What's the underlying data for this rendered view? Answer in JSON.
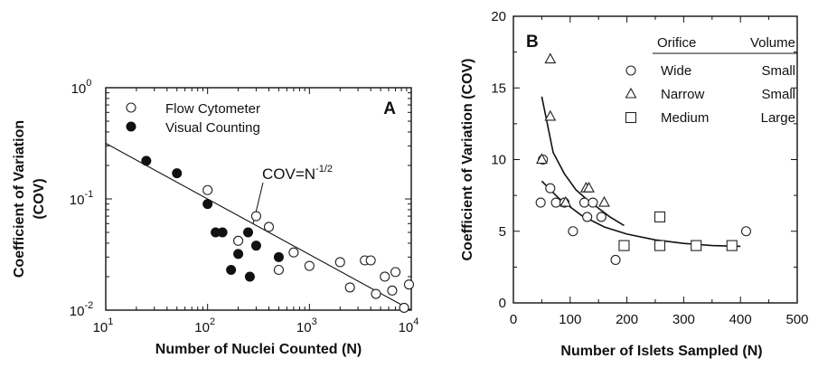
{
  "chart_data": [
    {
      "panel": "A",
      "type": "scatter",
      "xlabel": "Number of Nuclei Counted (N)",
      "ylabel_line1": "Coefficient of Variation",
      "ylabel_line2": "(COV)",
      "x_scale": "log",
      "y_scale": "log",
      "xlim": [
        10,
        10000
      ],
      "ylim": [
        0.01,
        1
      ],
      "x_ticks": [
        {
          "base": "10",
          "exp": "1"
        },
        {
          "base": "10",
          "exp": "2"
        },
        {
          "base": "10",
          "exp": "3"
        },
        {
          "base": "10",
          "exp": "4"
        }
      ],
      "y_ticks": [
        {
          "base": "10",
          "exp": "-2"
        },
        {
          "base": "10",
          "exp": "-1"
        },
        {
          "base": "10",
          "exp": "0"
        }
      ],
      "legend": [
        "Flow Cytometer",
        "Visual Counting"
      ],
      "annotation": {
        "base": "COV=N",
        "exp": "-1/2"
      },
      "line": {
        "label": "COV=N^-1/2",
        "x": [
          10,
          10000
        ],
        "y": [
          0.316,
          0.01
        ]
      },
      "series": [
        {
          "name": "Flow Cytometer",
          "marker": "open-circle",
          "points": [
            [
              100,
              0.12
            ],
            [
              200,
              0.042
            ],
            [
              300,
              0.07
            ],
            [
              400,
              0.056
            ],
            [
              500,
              0.023
            ],
            [
              700,
              0.033
            ],
            [
              1000,
              0.025
            ],
            [
              2000,
              0.027
            ],
            [
              2500,
              0.016
            ],
            [
              3500,
              0.028
            ],
            [
              4000,
              0.028
            ],
            [
              4500,
              0.014
            ],
            [
              5500,
              0.02
            ],
            [
              6500,
              0.015
            ],
            [
              7000,
              0.022
            ],
            [
              8500,
              0.0105
            ],
            [
              9500,
              0.017
            ]
          ]
        },
        {
          "name": "Visual Counting",
          "marker": "filled-circle",
          "points": [
            [
              25,
              0.22
            ],
            [
              50,
              0.17
            ],
            [
              100,
              0.09
            ],
            [
              120,
              0.05
            ],
            [
              140,
              0.05
            ],
            [
              170,
              0.023
            ],
            [
              200,
              0.032
            ],
            [
              250,
              0.05
            ],
            [
              260,
              0.02
            ],
            [
              300,
              0.038
            ],
            [
              500,
              0.03
            ]
          ]
        }
      ]
    },
    {
      "panel": "B",
      "type": "scatter",
      "xlabel": "Number of Islets Sampled (N)",
      "ylabel": "Coefficient of Variation (COV)",
      "xlim": [
        0,
        500
      ],
      "ylim": [
        0,
        20
      ],
      "x_ticks": [
        "0",
        "100",
        "200",
        "300",
        "400",
        "500"
      ],
      "y_ticks": [
        "0",
        "5",
        "10",
        "15",
        "20"
      ],
      "legend_headers": [
        "Orifice",
        "Volume"
      ],
      "legend": [
        {
          "orifice": "Wide",
          "volume": "Small",
          "marker": "circle"
        },
        {
          "orifice": "Narrow",
          "volume": "Small",
          "marker": "triangle"
        },
        {
          "orifice": "Medium",
          "volume": "Large",
          "marker": "square"
        }
      ],
      "series": [
        {
          "name": "Wide",
          "marker": "circle",
          "points": [
            [
              48,
              7
            ],
            [
              52,
              10
            ],
            [
              65,
              8
            ],
            [
              75,
              7
            ],
            [
              90,
              7
            ],
            [
              105,
              5
            ],
            [
              125,
              7
            ],
            [
              130,
              6
            ],
            [
              140,
              7
            ],
            [
              155,
              6
            ],
            [
              180,
              3
            ],
            [
              410,
              5
            ]
          ]
        },
        {
          "name": "Narrow",
          "marker": "triangle",
          "points": [
            [
              50,
              10
            ],
            [
              65,
              17
            ],
            [
              65,
              13
            ],
            [
              92,
              7
            ],
            [
              128,
              8
            ],
            [
              133,
              8
            ],
            [
              160,
              7
            ]
          ]
        },
        {
          "name": "Medium",
          "marker": "square",
          "points": [
            [
              195,
              4
            ],
            [
              258,
              6
            ],
            [
              258,
              4
            ],
            [
              322,
              4
            ],
            [
              385,
              4
            ]
          ]
        }
      ],
      "curves": [
        {
          "x": [
            50,
            70,
            90,
            110,
            130,
            150,
            170,
            195
          ],
          "y": [
            14.4,
            10.5,
            9.0,
            7.9,
            7.2,
            6.6,
            6.0,
            5.4
          ]
        },
        {
          "x": [
            50,
            80,
            120,
            160,
            200,
            250,
            300,
            350,
            400
          ],
          "y": [
            8.5,
            7.3,
            6.1,
            5.3,
            4.8,
            4.4,
            4.15,
            4.0,
            3.95
          ]
        }
      ]
    }
  ]
}
